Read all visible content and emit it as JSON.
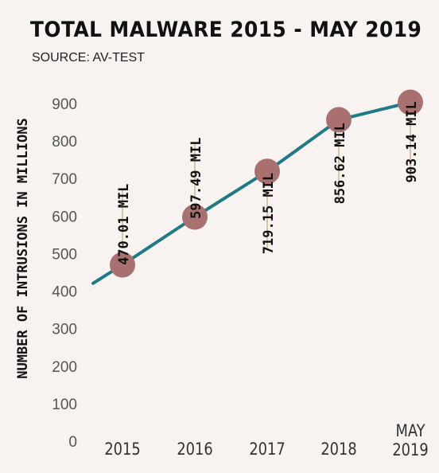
{
  "chart_data": {
    "type": "line",
    "title": "TOTAL MALWARE 2015 - MAY 2019",
    "subtitle": "SOURCE: AV-TEST",
    "xlabel": "",
    "ylabel": "NUMBER OF INTRUSIONS IN MILLIONS",
    "ylim": [
      0,
      900
    ],
    "yticks": [
      "0",
      "100",
      "200",
      "300",
      "400",
      "500",
      "600",
      "700",
      "800",
      "900"
    ],
    "categories": [
      "2015",
      "2016",
      "2017",
      "2018",
      "MAY 2019"
    ],
    "category_lines": [
      [
        "2015"
      ],
      [
        "2016"
      ],
      [
        "2017"
      ],
      [
        "2018"
      ],
      [
        "MAY",
        "2019"
      ]
    ],
    "values": [
      470.01,
      597.49,
      719.15,
      856.62,
      903.14
    ],
    "data_labels": [
      "470.01 MIL",
      "597.49 MIL",
      "719.15 MIL",
      "856.62 MIL",
      "903.14 MIL"
    ],
    "grid": false,
    "colors": {
      "line": "#1f7a86",
      "marker": "#a8706f",
      "leader": "#b9955e",
      "text": "#111111",
      "tick": "#555555"
    }
  }
}
